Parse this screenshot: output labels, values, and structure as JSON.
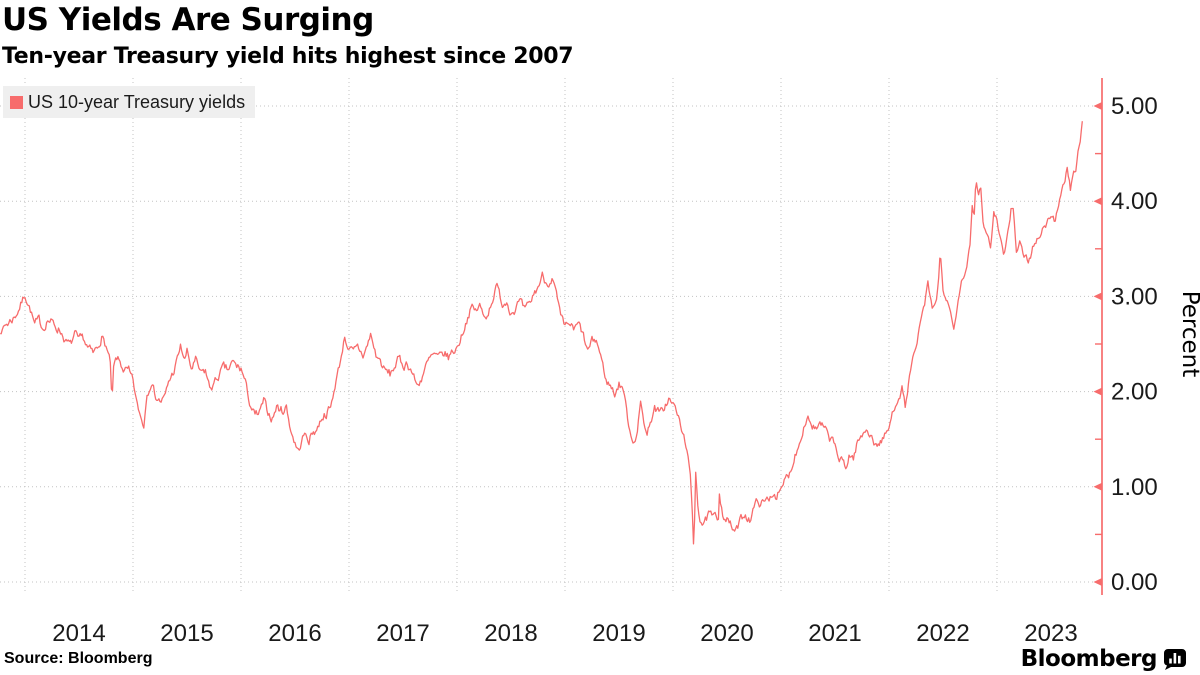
{
  "header": {
    "title": "US Yields Are Surging",
    "subtitle": "Ten-year Treasury yield hits highest since 2007"
  },
  "legend": {
    "label": "US 10-year Treasury yields",
    "swatch_color": "#f76c6c"
  },
  "footer": {
    "source": "Source: Bloomberg",
    "brand": "Bloomberg"
  },
  "colors": {
    "accent": "#f76c6c",
    "grid": "#c3c3c3",
    "legend_bg": "#efefef",
    "text": "#1a1a1a"
  },
  "chart_data": {
    "type": "line",
    "title": "US Yields Are Surging",
    "subtitle": "Ten-year Treasury yield hits highest since 2007",
    "xlabel": "",
    "ylabel": "Percent",
    "ylim": [
      0,
      5.45
    ],
    "xlim": [
      2013.77,
      2023.97
    ],
    "y_ticks": [
      "0.00",
      "1.00",
      "2.00",
      "3.00",
      "4.00",
      "5.00"
    ],
    "y_minor_tick_step": 0.5,
    "x_ticks": [
      2014,
      2015,
      2016,
      2017,
      2018,
      2019,
      2020,
      2021,
      2022,
      2023
    ],
    "grid": "dotted",
    "legend_position": "top-left",
    "axis_side": "right",
    "series": [
      {
        "name": "US 10-year Treasury yields",
        "color": "#f76c6c",
        "units": "percent",
        "points": [
          [
            2013.77,
            2.61
          ],
          [
            2013.82,
            2.7
          ],
          [
            2013.86,
            2.74
          ],
          [
            2013.9,
            2.78
          ],
          [
            2013.94,
            2.86
          ],
          [
            2014.0,
            3.02
          ],
          [
            2014.05,
            2.86
          ],
          [
            2014.09,
            2.7
          ],
          [
            2014.13,
            2.74
          ],
          [
            2014.17,
            2.67
          ],
          [
            2014.21,
            2.76
          ],
          [
            2014.25,
            2.72
          ],
          [
            2014.29,
            2.68
          ],
          [
            2014.33,
            2.64
          ],
          [
            2014.38,
            2.52
          ],
          [
            2014.42,
            2.48
          ],
          [
            2014.46,
            2.6
          ],
          [
            2014.5,
            2.52
          ],
          [
            2014.54,
            2.56
          ],
          [
            2014.58,
            2.46
          ],
          [
            2014.63,
            2.39
          ],
          [
            2014.67,
            2.46
          ],
          [
            2014.71,
            2.58
          ],
          [
            2014.75,
            2.48
          ],
          [
            2014.79,
            2.3
          ],
          [
            2014.805,
            1.87
          ],
          [
            2014.82,
            2.25
          ],
          [
            2014.85,
            2.34
          ],
          [
            2014.88,
            2.3
          ],
          [
            2014.92,
            2.22
          ],
          [
            2014.96,
            2.2
          ],
          [
            2015.0,
            2.1
          ],
          [
            2015.04,
            1.85
          ],
          [
            2015.08,
            1.7
          ],
          [
            2015.1,
            1.65
          ],
          [
            2015.13,
            1.98
          ],
          [
            2015.17,
            2.12
          ],
          [
            2015.21,
            1.95
          ],
          [
            2015.25,
            1.9
          ],
          [
            2015.29,
            1.92
          ],
          [
            2015.33,
            2.1
          ],
          [
            2015.38,
            2.22
          ],
          [
            2015.42,
            2.38
          ],
          [
            2015.44,
            2.47
          ],
          [
            2015.48,
            2.33
          ],
          [
            2015.5,
            2.42
          ],
          [
            2015.54,
            2.24
          ],
          [
            2015.58,
            2.32
          ],
          [
            2015.63,
            2.18
          ],
          [
            2015.67,
            2.22
          ],
          [
            2015.71,
            2.04
          ],
          [
            2015.75,
            2.08
          ],
          [
            2015.79,
            2.16
          ],
          [
            2015.83,
            2.24
          ],
          [
            2015.88,
            2.22
          ],
          [
            2015.92,
            2.3
          ],
          [
            2015.96,
            2.26
          ],
          [
            2016.0,
            2.24
          ],
          [
            2016.04,
            2.1
          ],
          [
            2016.08,
            1.88
          ],
          [
            2016.13,
            1.74
          ],
          [
            2016.17,
            1.76
          ],
          [
            2016.21,
            1.9
          ],
          [
            2016.25,
            1.78
          ],
          [
            2016.29,
            1.72
          ],
          [
            2016.33,
            1.84
          ],
          [
            2016.38,
            1.8
          ],
          [
            2016.42,
            1.84
          ],
          [
            2016.46,
            1.6
          ],
          [
            2016.5,
            1.46
          ],
          [
            2016.53,
            1.37
          ],
          [
            2016.58,
            1.54
          ],
          [
            2016.63,
            1.5
          ],
          [
            2016.67,
            1.58
          ],
          [
            2016.71,
            1.62
          ],
          [
            2016.75,
            1.74
          ],
          [
            2016.79,
            1.78
          ],
          [
            2016.83,
            1.82
          ],
          [
            2016.88,
            2.12
          ],
          [
            2016.92,
            2.32
          ],
          [
            2016.96,
            2.58
          ],
          [
            2017.0,
            2.44
          ],
          [
            2017.04,
            2.4
          ],
          [
            2017.08,
            2.46
          ],
          [
            2017.13,
            2.38
          ],
          [
            2017.17,
            2.48
          ],
          [
            2017.2,
            2.6
          ],
          [
            2017.25,
            2.38
          ],
          [
            2017.29,
            2.32
          ],
          [
            2017.33,
            2.22
          ],
          [
            2017.38,
            2.18
          ],
          [
            2017.42,
            2.26
          ],
          [
            2017.46,
            2.34
          ],
          [
            2017.5,
            2.28
          ],
          [
            2017.54,
            2.3
          ],
          [
            2017.58,
            2.22
          ],
          [
            2017.63,
            2.06
          ],
          [
            2017.67,
            2.14
          ],
          [
            2017.71,
            2.26
          ],
          [
            2017.75,
            2.34
          ],
          [
            2017.79,
            2.38
          ],
          [
            2017.83,
            2.34
          ],
          [
            2017.88,
            2.4
          ],
          [
            2017.92,
            2.36
          ],
          [
            2017.96,
            2.42
          ],
          [
            2018.0,
            2.46
          ],
          [
            2018.04,
            2.58
          ],
          [
            2018.08,
            2.72
          ],
          [
            2018.13,
            2.88
          ],
          [
            2018.17,
            2.84
          ],
          [
            2018.21,
            2.9
          ],
          [
            2018.25,
            2.78
          ],
          [
            2018.29,
            2.84
          ],
          [
            2018.33,
            2.98
          ],
          [
            2018.37,
            3.11
          ],
          [
            2018.42,
            2.92
          ],
          [
            2018.46,
            2.96
          ],
          [
            2018.5,
            2.84
          ],
          [
            2018.54,
            2.88
          ],
          [
            2018.58,
            2.94
          ],
          [
            2018.63,
            2.84
          ],
          [
            2018.67,
            2.9
          ],
          [
            2018.71,
            3.02
          ],
          [
            2018.75,
            3.1
          ],
          [
            2018.79,
            3.22
          ],
          [
            2018.83,
            3.14
          ],
          [
            2018.88,
            3.2
          ],
          [
            2018.92,
            3.02
          ],
          [
            2018.96,
            2.78
          ],
          [
            2019.0,
            2.66
          ],
          [
            2019.04,
            2.72
          ],
          [
            2019.08,
            2.64
          ],
          [
            2019.13,
            2.7
          ],
          [
            2019.17,
            2.58
          ],
          [
            2019.21,
            2.42
          ],
          [
            2019.25,
            2.52
          ],
          [
            2019.29,
            2.54
          ],
          [
            2019.33,
            2.38
          ],
          [
            2019.38,
            2.12
          ],
          [
            2019.42,
            2.06
          ],
          [
            2019.46,
            1.98
          ],
          [
            2019.5,
            2.08
          ],
          [
            2019.54,
            2.04
          ],
          [
            2019.58,
            1.72
          ],
          [
            2019.6,
            1.6
          ],
          [
            2019.63,
            1.48
          ],
          [
            2019.67,
            1.58
          ],
          [
            2019.7,
            1.88
          ],
          [
            2019.73,
            1.7
          ],
          [
            2019.76,
            1.54
          ],
          [
            2019.79,
            1.7
          ],
          [
            2019.83,
            1.82
          ],
          [
            2019.88,
            1.76
          ],
          [
            2019.92,
            1.84
          ],
          [
            2019.96,
            1.92
          ],
          [
            2020.0,
            1.86
          ],
          [
            2020.04,
            1.78
          ],
          [
            2020.08,
            1.58
          ],
          [
            2020.13,
            1.42
          ],
          [
            2020.16,
            1.1
          ],
          [
            2020.18,
            0.7
          ],
          [
            2020.193,
            0.31
          ],
          [
            2020.21,
            1.16
          ],
          [
            2020.23,
            0.82
          ],
          [
            2020.25,
            0.66
          ],
          [
            2020.29,
            0.6
          ],
          [
            2020.33,
            0.7
          ],
          [
            2020.38,
            0.66
          ],
          [
            2020.42,
            0.68
          ],
          [
            2020.43,
            0.94
          ],
          [
            2020.46,
            0.72
          ],
          [
            2020.5,
            0.66
          ],
          [
            2020.54,
            0.58
          ],
          [
            2020.58,
            0.52
          ],
          [
            2020.63,
            0.66
          ],
          [
            2020.67,
            0.72
          ],
          [
            2020.71,
            0.66
          ],
          [
            2020.75,
            0.78
          ],
          [
            2020.79,
            0.86
          ],
          [
            2020.83,
            0.82
          ],
          [
            2020.88,
            0.86
          ],
          [
            2020.92,
            0.94
          ],
          [
            2020.96,
            0.92
          ],
          [
            2021.0,
            0.93
          ],
          [
            2021.04,
            1.08
          ],
          [
            2021.08,
            1.14
          ],
          [
            2021.13,
            1.34
          ],
          [
            2021.17,
            1.46
          ],
          [
            2021.21,
            1.64
          ],
          [
            2021.25,
            1.74
          ],
          [
            2021.29,
            1.64
          ],
          [
            2021.33,
            1.6
          ],
          [
            2021.38,
            1.64
          ],
          [
            2021.42,
            1.56
          ],
          [
            2021.46,
            1.5
          ],
          [
            2021.5,
            1.44
          ],
          [
            2021.54,
            1.28
          ],
          [
            2021.58,
            1.24
          ],
          [
            2021.6,
            1.18
          ],
          [
            2021.63,
            1.34
          ],
          [
            2021.67,
            1.3
          ],
          [
            2021.71,
            1.48
          ],
          [
            2021.75,
            1.52
          ],
          [
            2021.79,
            1.62
          ],
          [
            2021.83,
            1.56
          ],
          [
            2021.88,
            1.42
          ],
          [
            2021.92,
            1.48
          ],
          [
            2021.96,
            1.52
          ],
          [
            2022.0,
            1.62
          ],
          [
            2022.04,
            1.8
          ],
          [
            2022.08,
            1.94
          ],
          [
            2022.12,
            2.04
          ],
          [
            2022.15,
            1.84
          ],
          [
            2022.17,
            1.98
          ],
          [
            2022.21,
            2.32
          ],
          [
            2022.25,
            2.42
          ],
          [
            2022.29,
            2.72
          ],
          [
            2022.33,
            2.92
          ],
          [
            2022.36,
            3.12
          ],
          [
            2022.4,
            2.86
          ],
          [
            2022.44,
            2.96
          ],
          [
            2022.46,
            3.2
          ],
          [
            2022.475,
            3.48
          ],
          [
            2022.5,
            3.08
          ],
          [
            2022.54,
            2.92
          ],
          [
            2022.58,
            2.76
          ],
          [
            2022.6,
            2.62
          ],
          [
            2022.63,
            2.88
          ],
          [
            2022.67,
            3.12
          ],
          [
            2022.71,
            3.26
          ],
          [
            2022.75,
            3.56
          ],
          [
            2022.77,
            3.96
          ],
          [
            2022.79,
            3.88
          ],
          [
            2022.805,
            4.25
          ],
          [
            2022.83,
            4.08
          ],
          [
            2022.85,
            4.15
          ],
          [
            2022.87,
            3.78
          ],
          [
            2022.9,
            3.7
          ],
          [
            2022.94,
            3.5
          ],
          [
            2022.97,
            3.88
          ],
          [
            2023.0,
            3.78
          ],
          [
            2023.04,
            3.54
          ],
          [
            2023.06,
            3.4
          ],
          [
            2023.1,
            3.66
          ],
          [
            2023.13,
            3.92
          ],
          [
            2023.15,
            3.96
          ],
          [
            2023.18,
            3.46
          ],
          [
            2023.21,
            3.56
          ],
          [
            2023.25,
            3.42
          ],
          [
            2023.29,
            3.36
          ],
          [
            2023.33,
            3.5
          ],
          [
            2023.38,
            3.62
          ],
          [
            2023.42,
            3.72
          ],
          [
            2023.46,
            3.76
          ],
          [
            2023.5,
            3.86
          ],
          [
            2023.54,
            3.8
          ],
          [
            2023.58,
            3.98
          ],
          [
            2023.6,
            4.08
          ],
          [
            2023.63,
            4.24
          ],
          [
            2023.65,
            4.34
          ],
          [
            2023.68,
            4.12
          ],
          [
            2023.71,
            4.26
          ],
          [
            2023.73,
            4.34
          ],
          [
            2023.75,
            4.52
          ],
          [
            2023.77,
            4.62
          ],
          [
            2023.79,
            4.84
          ]
        ]
      }
    ]
  }
}
